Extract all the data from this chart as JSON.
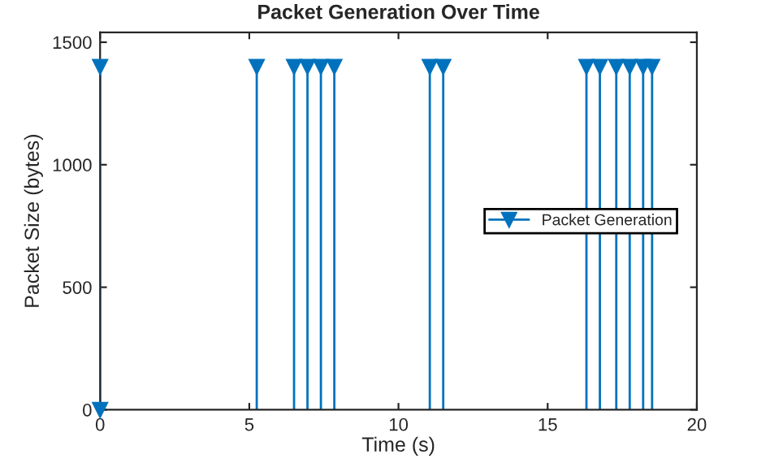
{
  "chart_data": {
    "type": "lollipop",
    "title": "Packet Generation Over Time",
    "xlabel": "Time (s)",
    "ylabel": "Packet Size (bytes)",
    "xlim": [
      0,
      20
    ],
    "xticks": [
      0,
      5,
      10,
      15,
      20
    ],
    "ylim": [
      0,
      1540
    ],
    "yticks": [
      0,
      500,
      1000,
      1500
    ],
    "grid": false,
    "legend": "right",
    "marker": "triangle",
    "line_style": "solid",
    "series": [
      {
        "name": "Packet Generation",
        "color": "#0072bd",
        "x": [
          0,
          0,
          5.25,
          6.5,
          6.95,
          7.4,
          7.85,
          11.05,
          11.5,
          16.3,
          16.75,
          17.3,
          17.75,
          18.2,
          18.5
        ],
        "values": [
          0,
          1400,
          1400,
          1400,
          1400,
          1400,
          1400,
          1400,
          1400,
          1400,
          1400,
          1400,
          1400,
          1400,
          1400
        ]
      }
    ]
  }
}
